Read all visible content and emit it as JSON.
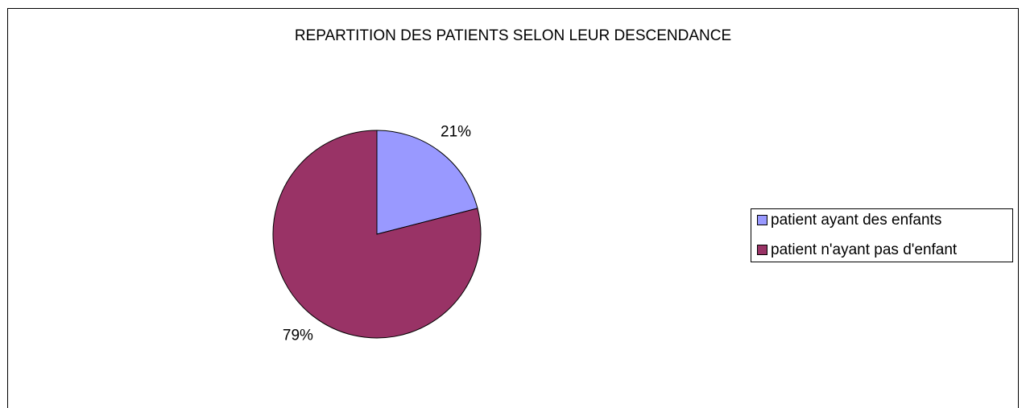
{
  "chart_data": {
    "type": "pie",
    "title": "REPARTITION DES PATIENTS SELON LEUR DESCENDANCE",
    "categories": [
      "patient ayant des enfants",
      "patient n'ayant pas d'enfant"
    ],
    "values": [
      21,
      79
    ],
    "value_labels": [
      "21%",
      "79%"
    ],
    "colors": [
      "#9999ff",
      "#993366"
    ],
    "legend": "right"
  }
}
